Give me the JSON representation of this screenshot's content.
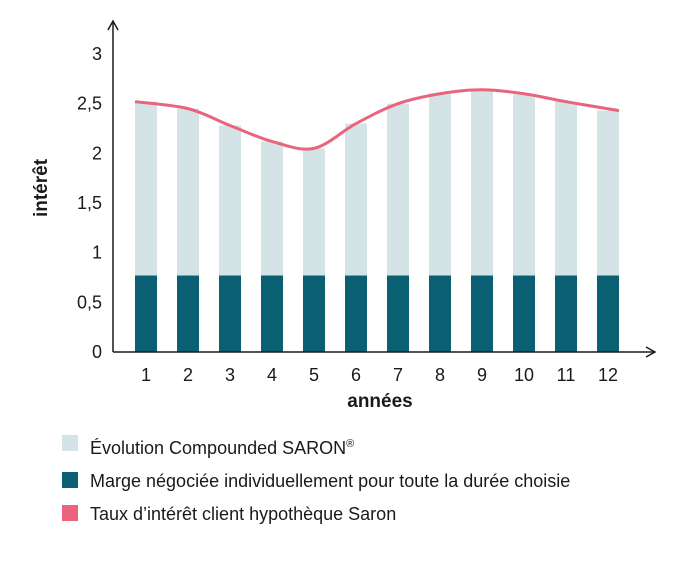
{
  "chart_data": {
    "type": "bar",
    "xlabel": "années",
    "ylabel": "intérêt",
    "ylim": [
      0,
      3
    ],
    "y_ticks": [
      "0",
      "0,5",
      "1",
      "1,5",
      "2",
      "2,5",
      "3"
    ],
    "categories": [
      "1",
      "2",
      "3",
      "4",
      "5",
      "6",
      "7",
      "8",
      "9",
      "10",
      "11",
      "12"
    ],
    "stacked": true,
    "grid": false,
    "legend_position": "bottom",
    "series": [
      {
        "name": "Marge négociée individuellement pour toute la durée choisie",
        "color": "#0a5f73",
        "type": "bar",
        "values": [
          0.77,
          0.77,
          0.77,
          0.77,
          0.77,
          0.77,
          0.77,
          0.77,
          0.77,
          0.77,
          0.77,
          0.77
        ]
      },
      {
        "name": "Évolution Compounded SARON",
        "color": "#d4e3e6",
        "type": "bar",
        "values": [
          1.75,
          1.68,
          1.51,
          1.35,
          1.28,
          1.53,
          1.73,
          1.83,
          1.87,
          1.83,
          1.75,
          1.66
        ]
      },
      {
        "name": "Taux d’intérêt client hypothèque Saron",
        "color": "#e8657d",
        "type": "line",
        "values": [
          2.52,
          2.45,
          2.28,
          2.12,
          2.05,
          2.3,
          2.5,
          2.6,
          2.64,
          2.6,
          2.52,
          2.43
        ]
      }
    ]
  },
  "legend": {
    "items": [
      {
        "label": "Évolution Compounded SARON",
        "sup": "®",
        "color": "#d4e3e6"
      },
      {
        "label": "Marge négociée individuellement pour toute la durée choisie",
        "sup": "",
        "color": "#0a5f73"
      },
      {
        "label": "Taux d’intérêt client hypothèque Saron",
        "sup": "",
        "color": "#e8657d"
      }
    ]
  }
}
